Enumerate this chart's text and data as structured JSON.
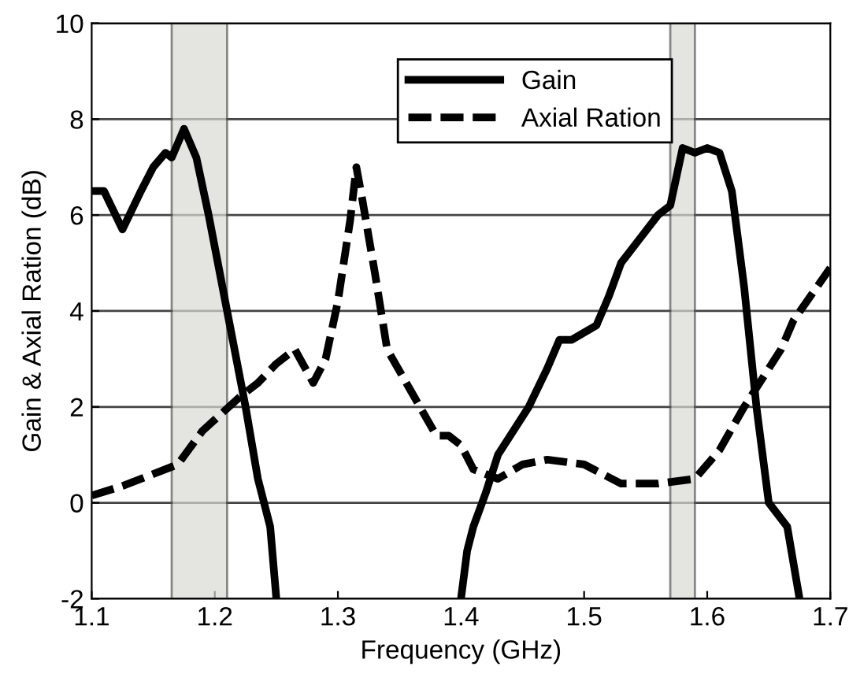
{
  "chart_data": {
    "type": "line",
    "xlabel": "Frequency (GHz)",
    "ylabel": "Gain & Axial Ration (dB)",
    "xlim": [
      1.1,
      1.7
    ],
    "ylim": [
      -2,
      10
    ],
    "xticks": [
      1.1,
      1.2,
      1.3,
      1.4,
      1.5,
      1.6,
      1.7
    ],
    "yticks": [
      -2,
      0,
      2,
      4,
      6,
      8,
      10
    ],
    "grid": "y",
    "legend": "top",
    "marker": "none",
    "series": [
      {
        "name": "Gain",
        "color": "#000000",
        "line_style": "solid",
        "x": [
          1.1,
          1.11,
          1.125,
          1.14,
          1.15,
          1.16,
          1.165,
          1.175,
          1.185,
          1.195,
          1.21,
          1.225,
          1.235,
          1.245,
          1.25,
          1.3,
          1.4,
          1.405,
          1.41,
          1.42,
          1.43,
          1.44,
          1.455,
          1.47,
          1.48,
          1.49,
          1.51,
          1.52,
          1.53,
          1.545,
          1.56,
          1.57,
          1.58,
          1.59,
          1.6,
          1.61,
          1.62,
          1.63,
          1.64,
          1.65,
          1.665,
          1.675
        ],
        "values": [
          6.5,
          6.5,
          5.7,
          6.5,
          7.0,
          7.3,
          7.2,
          7.8,
          7.2,
          6.0,
          4.0,
          2.0,
          0.5,
          -0.5,
          -2,
          null,
          -2,
          -1,
          -0.5,
          0.2,
          1.0,
          1.4,
          2.0,
          2.8,
          3.4,
          3.4,
          3.7,
          4.3,
          5.0,
          5.5,
          6.0,
          6.2,
          7.4,
          7.3,
          7.4,
          7.3,
          6.5,
          4.5,
          2.0,
          0.0,
          -0.5,
          -2
        ]
      },
      {
        "name": "Axial Ration",
        "color": "#000000",
        "line_style": "dashed",
        "x": [
          1.1,
          1.125,
          1.17,
          1.19,
          1.22,
          1.235,
          1.25,
          1.265,
          1.28,
          1.29,
          1.3,
          1.31,
          1.315,
          1.32,
          1.33,
          1.34,
          1.36,
          1.38,
          1.39,
          1.4,
          1.41,
          1.43,
          1.45,
          1.47,
          1.5,
          1.53,
          1.56,
          1.59,
          1.61,
          1.63,
          1.65,
          1.66,
          1.67,
          1.7
        ],
        "values": [
          0.15,
          0.35,
          0.8,
          1.5,
          2.2,
          2.5,
          2.9,
          3.2,
          2.5,
          3.0,
          4.2,
          5.9,
          7.0,
          6.3,
          4.8,
          3.2,
          2.3,
          1.4,
          1.4,
          1.2,
          0.7,
          0.5,
          0.8,
          0.9,
          0.8,
          0.4,
          0.4,
          0.5,
          1.1,
          2.0,
          2.8,
          3.2,
          3.8,
          4.9
        ]
      }
    ],
    "bands": [
      {
        "axis": "x",
        "from": 1.165,
        "to": 1.21,
        "color": "#d9d9d4"
      },
      {
        "axis": "x",
        "from": 1.57,
        "to": 1.59,
        "color": "#d9d9d4"
      }
    ]
  }
}
